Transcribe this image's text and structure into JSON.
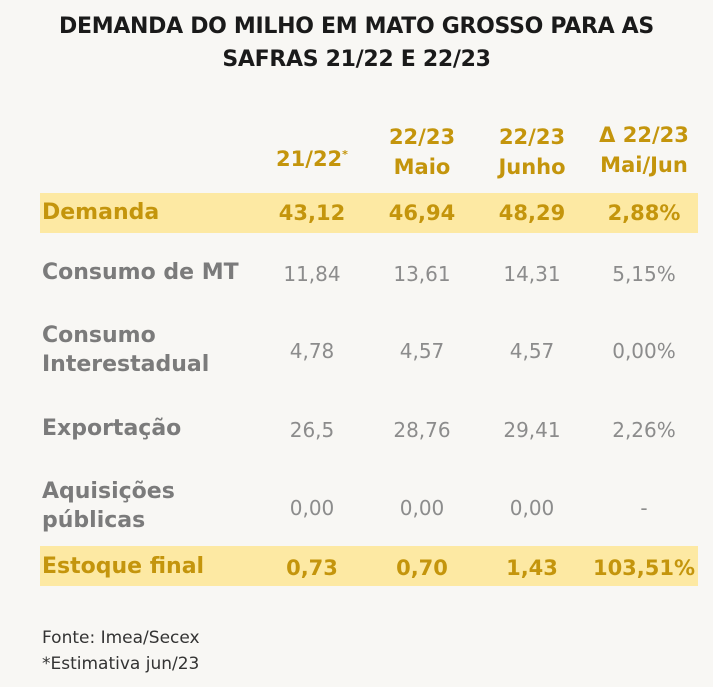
{
  "title": [
    "DEMANDA DO MILHO EM MATO GROSSO PARA AS",
    "SAFRAS 21/22 E 22/23"
  ],
  "columns": [
    {
      "line1": "21/22",
      "sup": "*",
      "line2": ""
    },
    {
      "line1": "22/23",
      "sup": "",
      "line2": "Maio"
    },
    {
      "line1": "22/23",
      "sup": "",
      "line2": "Junho"
    },
    {
      "line1": "Δ 22/23",
      "sup": "",
      "line2": "Mai/Jun"
    }
  ],
  "rows": [
    {
      "label": "Demanda",
      "values": [
        "43,12",
        "46,94",
        "48,29",
        "2,88%"
      ],
      "highlight": true
    },
    {
      "label": "Consumo de MT",
      "values": [
        "11,84",
        "13,61",
        "14,31",
        "5,15%"
      ],
      "highlight": false
    },
    {
      "label": "Consumo\nInterestadual",
      "values": [
        "4,78",
        "4,57",
        "4,57",
        "0,00%"
      ],
      "highlight": false
    },
    {
      "label": "Exportação",
      "values": [
        "26,5",
        "28,76",
        "29,41",
        "2,26%"
      ],
      "highlight": false
    },
    {
      "label": "Aquisições\npúblicas",
      "values": [
        "0,00",
        "0,00",
        "0,00",
        "-"
      ],
      "highlight": false
    },
    {
      "label": "Estoque final",
      "values": [
        "0,73",
        "0,70",
        "1,43",
        "103,51%"
      ],
      "highlight": true
    }
  ],
  "source": [
    "Fonte: Imea/Secex",
    "*Estimativa jun/23"
  ],
  "colors": {
    "accent": "#c4950c",
    "band": "#fde9a3",
    "muted": "#8c8c8c"
  }
}
